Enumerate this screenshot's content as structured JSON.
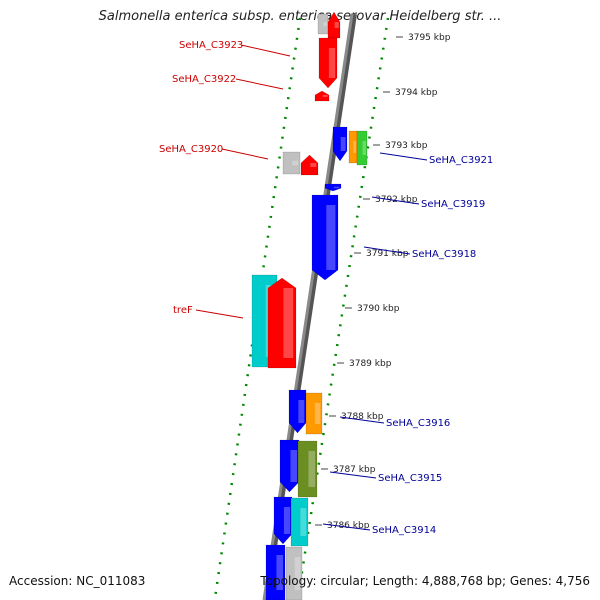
{
  "title": "Salmonella enterica subsp. enterica serovar Heidelberg str. ...",
  "footer": {
    "accession": "Accession: NC_011083",
    "summary": "Topology: circular; Length: 4,888,768 bp; Genes: 4,756"
  },
  "colors": {
    "label_left": "#cc0000",
    "label_right": "#000099",
    "ring_dots": "#008800",
    "backbone": "#8a8a8a",
    "red": "#ff0000",
    "blue": "#0000ff",
    "cyan": "#00cccc",
    "orange": "#ff9900",
    "green": "#33cc33",
    "olive": "#6b8e23",
    "gray": "#c0c0c0"
  },
  "scale_labels": [
    "3795 kbp",
    "3794 kbp",
    "3793 kbp",
    "3792 kbp",
    "3791 kbp",
    "3790 kbp",
    "3789 kbp",
    "3788 kbp",
    "3787 kbp",
    "3786 kbp"
  ],
  "gene_labels_left": [
    "SeHA_C3923",
    "SeHA_C3922",
    "SeHA_C3920",
    "treF"
  ],
  "gene_labels_right": [
    "SeHA_C3921",
    "SeHA_C3919",
    "SeHA_C3918",
    "SeHA_C3916",
    "SeHA_C3915",
    "SeHA_C3914"
  ]
}
